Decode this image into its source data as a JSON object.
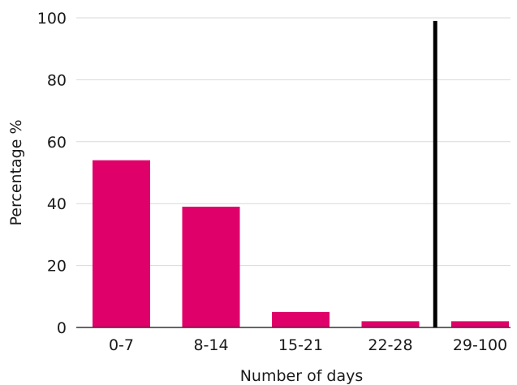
{
  "chart_data": {
    "type": "bar",
    "title": "",
    "xlabel": "Number of days",
    "ylabel": "Percentage %",
    "categories": [
      "0-7",
      "8-14",
      "15-21",
      "22-28",
      "29-100"
    ],
    "values": [
      54,
      39,
      5,
      2,
      2
    ],
    "ylim": [
      0,
      100
    ],
    "yticks": [
      "0",
      "20",
      "40",
      "60",
      "80",
      "100"
    ],
    "grid": true,
    "bar_color": "#e0006a",
    "reference_line": {
      "position_between": [
        "22-28",
        "29-100"
      ],
      "range": [
        0,
        99
      ],
      "color": "#000000"
    }
  }
}
